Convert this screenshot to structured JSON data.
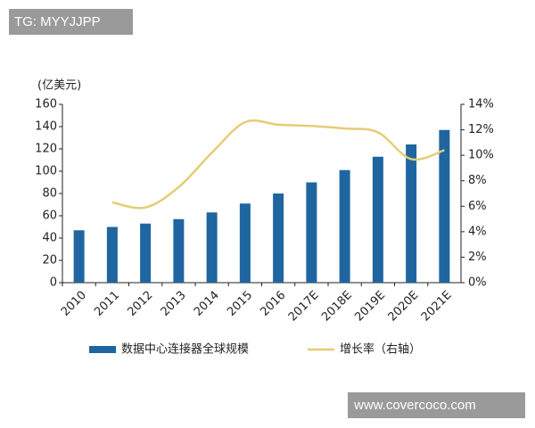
{
  "watermark_top": "TG: MYYJJPP",
  "watermark_bottom": "www.covercoco.com",
  "chart_data": {
    "type": "bar",
    "y_axis_label": "(亿美元)",
    "categories": [
      "2010",
      "2011",
      "2012",
      "2013",
      "2014",
      "2015",
      "2016",
      "2017E",
      "2018E",
      "2019E",
      "2020E",
      "2021E"
    ],
    "series": [
      {
        "name": "数据中心连接器全球规模",
        "type": "bar",
        "color": "#1f66a0",
        "values": [
          47,
          50,
          53,
          57,
          63,
          71,
          80,
          90,
          101,
          113,
          124,
          137
        ]
      },
      {
        "name": "增长率（右轴）",
        "type": "line",
        "axis": "y2",
        "color": "#e5cd76",
        "values": [
          null,
          6.3,
          5.9,
          7.5,
          10.2,
          12.6,
          12.4,
          12.3,
          12.1,
          11.8,
          9.7,
          10.4
        ]
      }
    ],
    "ylim": [
      0,
      160
    ],
    "yticks": [
      0,
      20,
      40,
      60,
      80,
      100,
      120,
      140,
      160
    ],
    "y2lim": [
      0,
      14
    ],
    "y2ticks": [
      {
        "value": 0,
        "label": "0%"
      },
      {
        "value": 2,
        "label": "2%"
      },
      {
        "value": 4,
        "label": "4%"
      },
      {
        "value": 6,
        "label": "6%"
      },
      {
        "value": 8,
        "label": "8%"
      },
      {
        "value": 10,
        "label": "10%"
      },
      {
        "value": 12,
        "label": "12%"
      },
      {
        "value": 14,
        "label": "14%"
      }
    ]
  }
}
